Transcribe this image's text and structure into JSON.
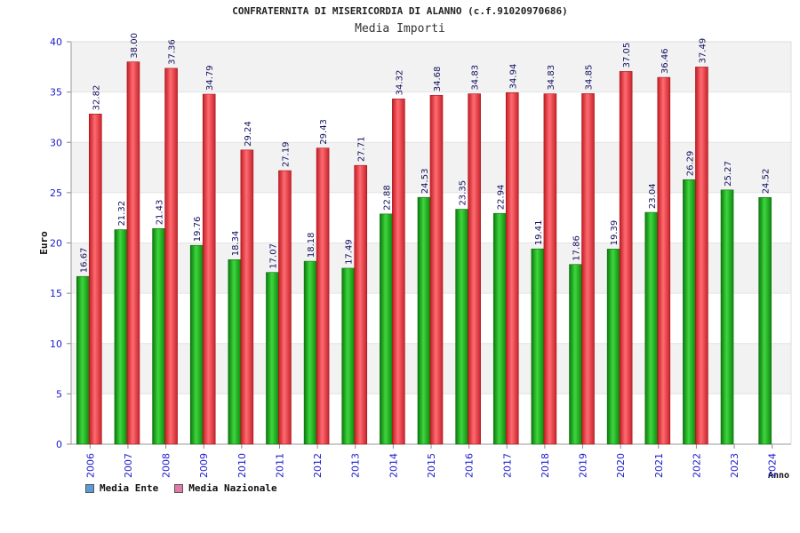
{
  "chart_data": {
    "type": "bar",
    "title": "CONFRATERNITA DI MISERICORDIA DI ALANNO (c.f.91020970686)",
    "subtitle": "Media Importi",
    "xlabel": "Anno",
    "ylabel": "Euro",
    "ylim": [
      0,
      40
    ],
    "yticks": [
      0,
      5,
      10,
      15,
      20,
      25,
      30,
      35,
      40
    ],
    "categories": [
      "2006",
      "2007",
      "2008",
      "2009",
      "2010",
      "2011",
      "2012",
      "2013",
      "2014",
      "2015",
      "2016",
      "2017",
      "2018",
      "2019",
      "2020",
      "2021",
      "2022",
      "2023",
      "2024"
    ],
    "series": [
      {
        "name": "Media Ente",
        "values": [
          16.67,
          21.32,
          21.43,
          19.76,
          18.34,
          17.07,
          18.18,
          17.49,
          22.88,
          24.53,
          23.35,
          22.94,
          19.41,
          17.86,
          19.39,
          23.04,
          26.29,
          25.27,
          24.52
        ],
        "labels": [
          "16.67",
          "21.32",
          "21.43",
          "19.76",
          "18.34",
          "17.07",
          "18.18",
          "17.49",
          "22.88",
          "24.53",
          "23.35",
          "22.94",
          "19.41",
          "17.86",
          "19.39",
          "23.04",
          "26.29",
          "25.27",
          "24.52"
        ]
      },
      {
        "name": "Media Nazionale",
        "values": [
          32.82,
          38.0,
          37.36,
          34.79,
          29.24,
          27.19,
          29.43,
          27.71,
          34.32,
          34.68,
          34.83,
          34.94,
          34.83,
          34.85,
          37.05,
          36.46,
          37.49,
          null,
          null
        ],
        "labels": [
          "32.82",
          "38.00",
          "37.36",
          "34.79",
          "29.24",
          "27.19",
          "29.43",
          "27.71",
          "34.32",
          "34.68",
          "34.83",
          "34.94",
          "34.83",
          "34.85",
          "37.05",
          "36.46",
          "37.49",
          "",
          ""
        ]
      }
    ],
    "legend": [
      {
        "label": "Media Ente",
        "color": "#5b9bd5"
      },
      {
        "label": "Media Nazionale",
        "color": "#e07aa6"
      }
    ],
    "colors": {
      "ente_bar": "#1fb51f",
      "nazionale_bar": "#e8343c",
      "axis_text": "#1a1acc",
      "label_text": "#101060",
      "band_grey": "#f2f2f2"
    }
  }
}
